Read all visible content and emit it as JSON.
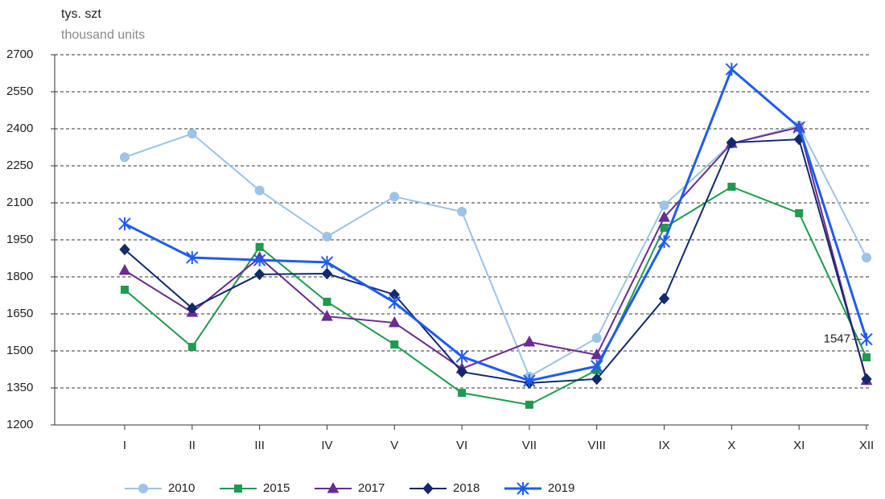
{
  "chart_data": {
    "type": "line",
    "y_label": "tys. szt",
    "y_sublabel": "thousand units",
    "categories": [
      "I",
      "II",
      "III",
      "IV",
      "V",
      "VI",
      "VII",
      "VIII",
      "IX",
      "X",
      "XI",
      "XII"
    ],
    "ylim": [
      1200,
      2700
    ],
    "yticks": [
      1200,
      1350,
      1500,
      1650,
      1800,
      1950,
      2100,
      2250,
      2400,
      2550,
      2700
    ],
    "grid": true,
    "legend": "bottom",
    "series": [
      {
        "name": "2010",
        "color": "#9dc3e6",
        "marker": "circle",
        "values": [
          2285,
          2380,
          2150,
          1963,
          2125,
          2064,
          1396,
          1552,
          2090,
          2341,
          2413,
          1878
        ]
      },
      {
        "name": "2015",
        "color": "#1f9a4f",
        "marker": "square",
        "values": [
          1748,
          1516,
          1921,
          1699,
          1526,
          1330,
          1282,
          1422,
          1999,
          2165,
          2058,
          1474
        ]
      },
      {
        "name": "2017",
        "color": "#6a2c91",
        "marker": "triangle",
        "values": [
          1826,
          1656,
          1878,
          1640,
          1614,
          1428,
          1536,
          1484,
          2041,
          2341,
          2406,
          1380
        ]
      },
      {
        "name": "2018",
        "color": "#12296b",
        "marker": "diamond",
        "values": [
          1911,
          1673,
          1810,
          1813,
          1728,
          1415,
          1370,
          1386,
          1712,
          2344,
          2357,
          1386
        ]
      },
      {
        "name": "2019",
        "color": "#1f5cf0",
        "marker": "star",
        "values": [
          2015,
          1878,
          1868,
          1859,
          1696,
          1477,
          1379,
          1438,
          1943,
          2641,
          2406,
          1547
        ]
      }
    ]
  }
}
